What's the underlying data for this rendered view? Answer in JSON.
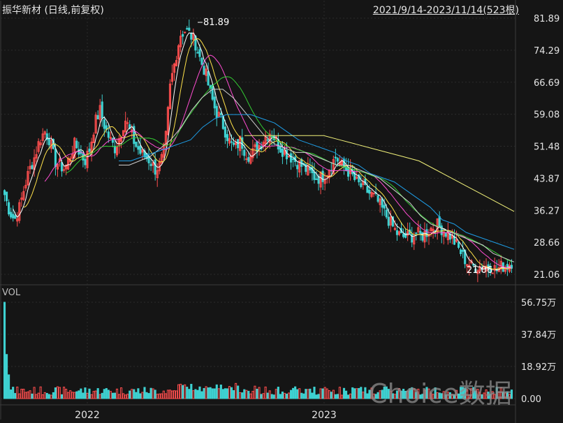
{
  "header": {
    "title": "振华新材 (日线,前复权)",
    "range": "2021/9/14-2023/11/14(523根)"
  },
  "volume_label": "VOL",
  "watermark": "Choice数据",
  "colors": {
    "background": "#151515",
    "up": "#ff4e4e",
    "down": "#3ed1d1",
    "ma5": "#ffffff",
    "ma10": "#ffe24a",
    "ma20": "#ff4dd2",
    "ma30": "#33cc33",
    "ma60": "#cfcfcf",
    "ma120": "#1e9de6",
    "ma250": "#f2f27a",
    "grid": "#2c2c2c",
    "axis_text": "#e4e4e4"
  },
  "chart_data": [
    {
      "type": "candlestick",
      "title": "振华新材 (日线,前复权)",
      "y_ticks": [
        "81.89",
        "74.29",
        "66.69",
        "59.08",
        "51.48",
        "43.87",
        "36.27",
        "28.66",
        "21.06"
      ],
      "ylim": [
        21.06,
        81.89
      ],
      "x_ticks": [
        "2022",
        "2023"
      ],
      "annotations": [
        "81.89",
        "21.06"
      ],
      "max_value": 81.89,
      "min_value": 21.06,
      "close_series_approx": [
        40,
        36,
        34,
        37,
        42,
        46,
        49,
        53,
        55,
        53,
        48,
        47,
        46,
        49,
        52,
        50,
        48,
        51,
        57,
        60,
        56,
        53,
        51,
        54,
        58,
        55,
        52,
        50,
        49,
        48,
        46,
        47,
        52,
        66,
        72,
        78,
        79,
        78,
        76,
        72,
        69,
        64,
        60,
        58,
        55,
        52,
        51,
        53,
        50,
        49,
        51,
        52,
        54,
        55,
        53,
        51,
        50,
        49,
        48,
        47,
        46,
        45,
        44,
        44,
        45,
        47,
        49,
        47,
        46,
        45,
        43,
        42,
        41,
        40,
        39,
        37,
        35,
        33,
        31,
        30,
        30,
        30,
        31,
        30,
        31,
        32,
        33,
        32,
        31,
        30,
        28,
        26,
        24,
        23,
        23,
        23,
        23,
        23,
        22,
        23,
        23,
        24
      ],
      "ma_lines_approx": {
        "ma60": [
          47,
          47,
          48,
          49,
          51,
          53,
          56,
          60,
          63,
          65,
          65,
          63,
          60,
          57,
          54,
          52,
          51,
          50,
          50,
          49,
          48,
          47,
          47,
          46,
          45,
          44,
          42,
          40,
          38,
          35,
          33,
          32,
          31,
          30,
          29,
          28,
          26,
          25,
          24
        ],
        "ma120": [
          48,
          48,
          49,
          50,
          51,
          52,
          53,
          56,
          58,
          59,
          59,
          59,
          58,
          57,
          55,
          53,
          52,
          51,
          50,
          48,
          47,
          45,
          44,
          43,
          41,
          39,
          37,
          34,
          33,
          31,
          30,
          29,
          28,
          27
        ],
        "ma250": [
          54,
          54,
          54,
          54,
          54,
          54,
          53,
          52,
          51,
          50,
          49,
          48,
          46,
          44,
          42,
          40,
          38,
          36
        ]
      }
    },
    {
      "type": "bar",
      "title": "VOL",
      "y_ticks": [
        "56.75万",
        "37.84万",
        "18.92万",
        "0.00"
      ],
      "ylim": [
        0,
        56.75
      ],
      "unit": "万"
    }
  ]
}
